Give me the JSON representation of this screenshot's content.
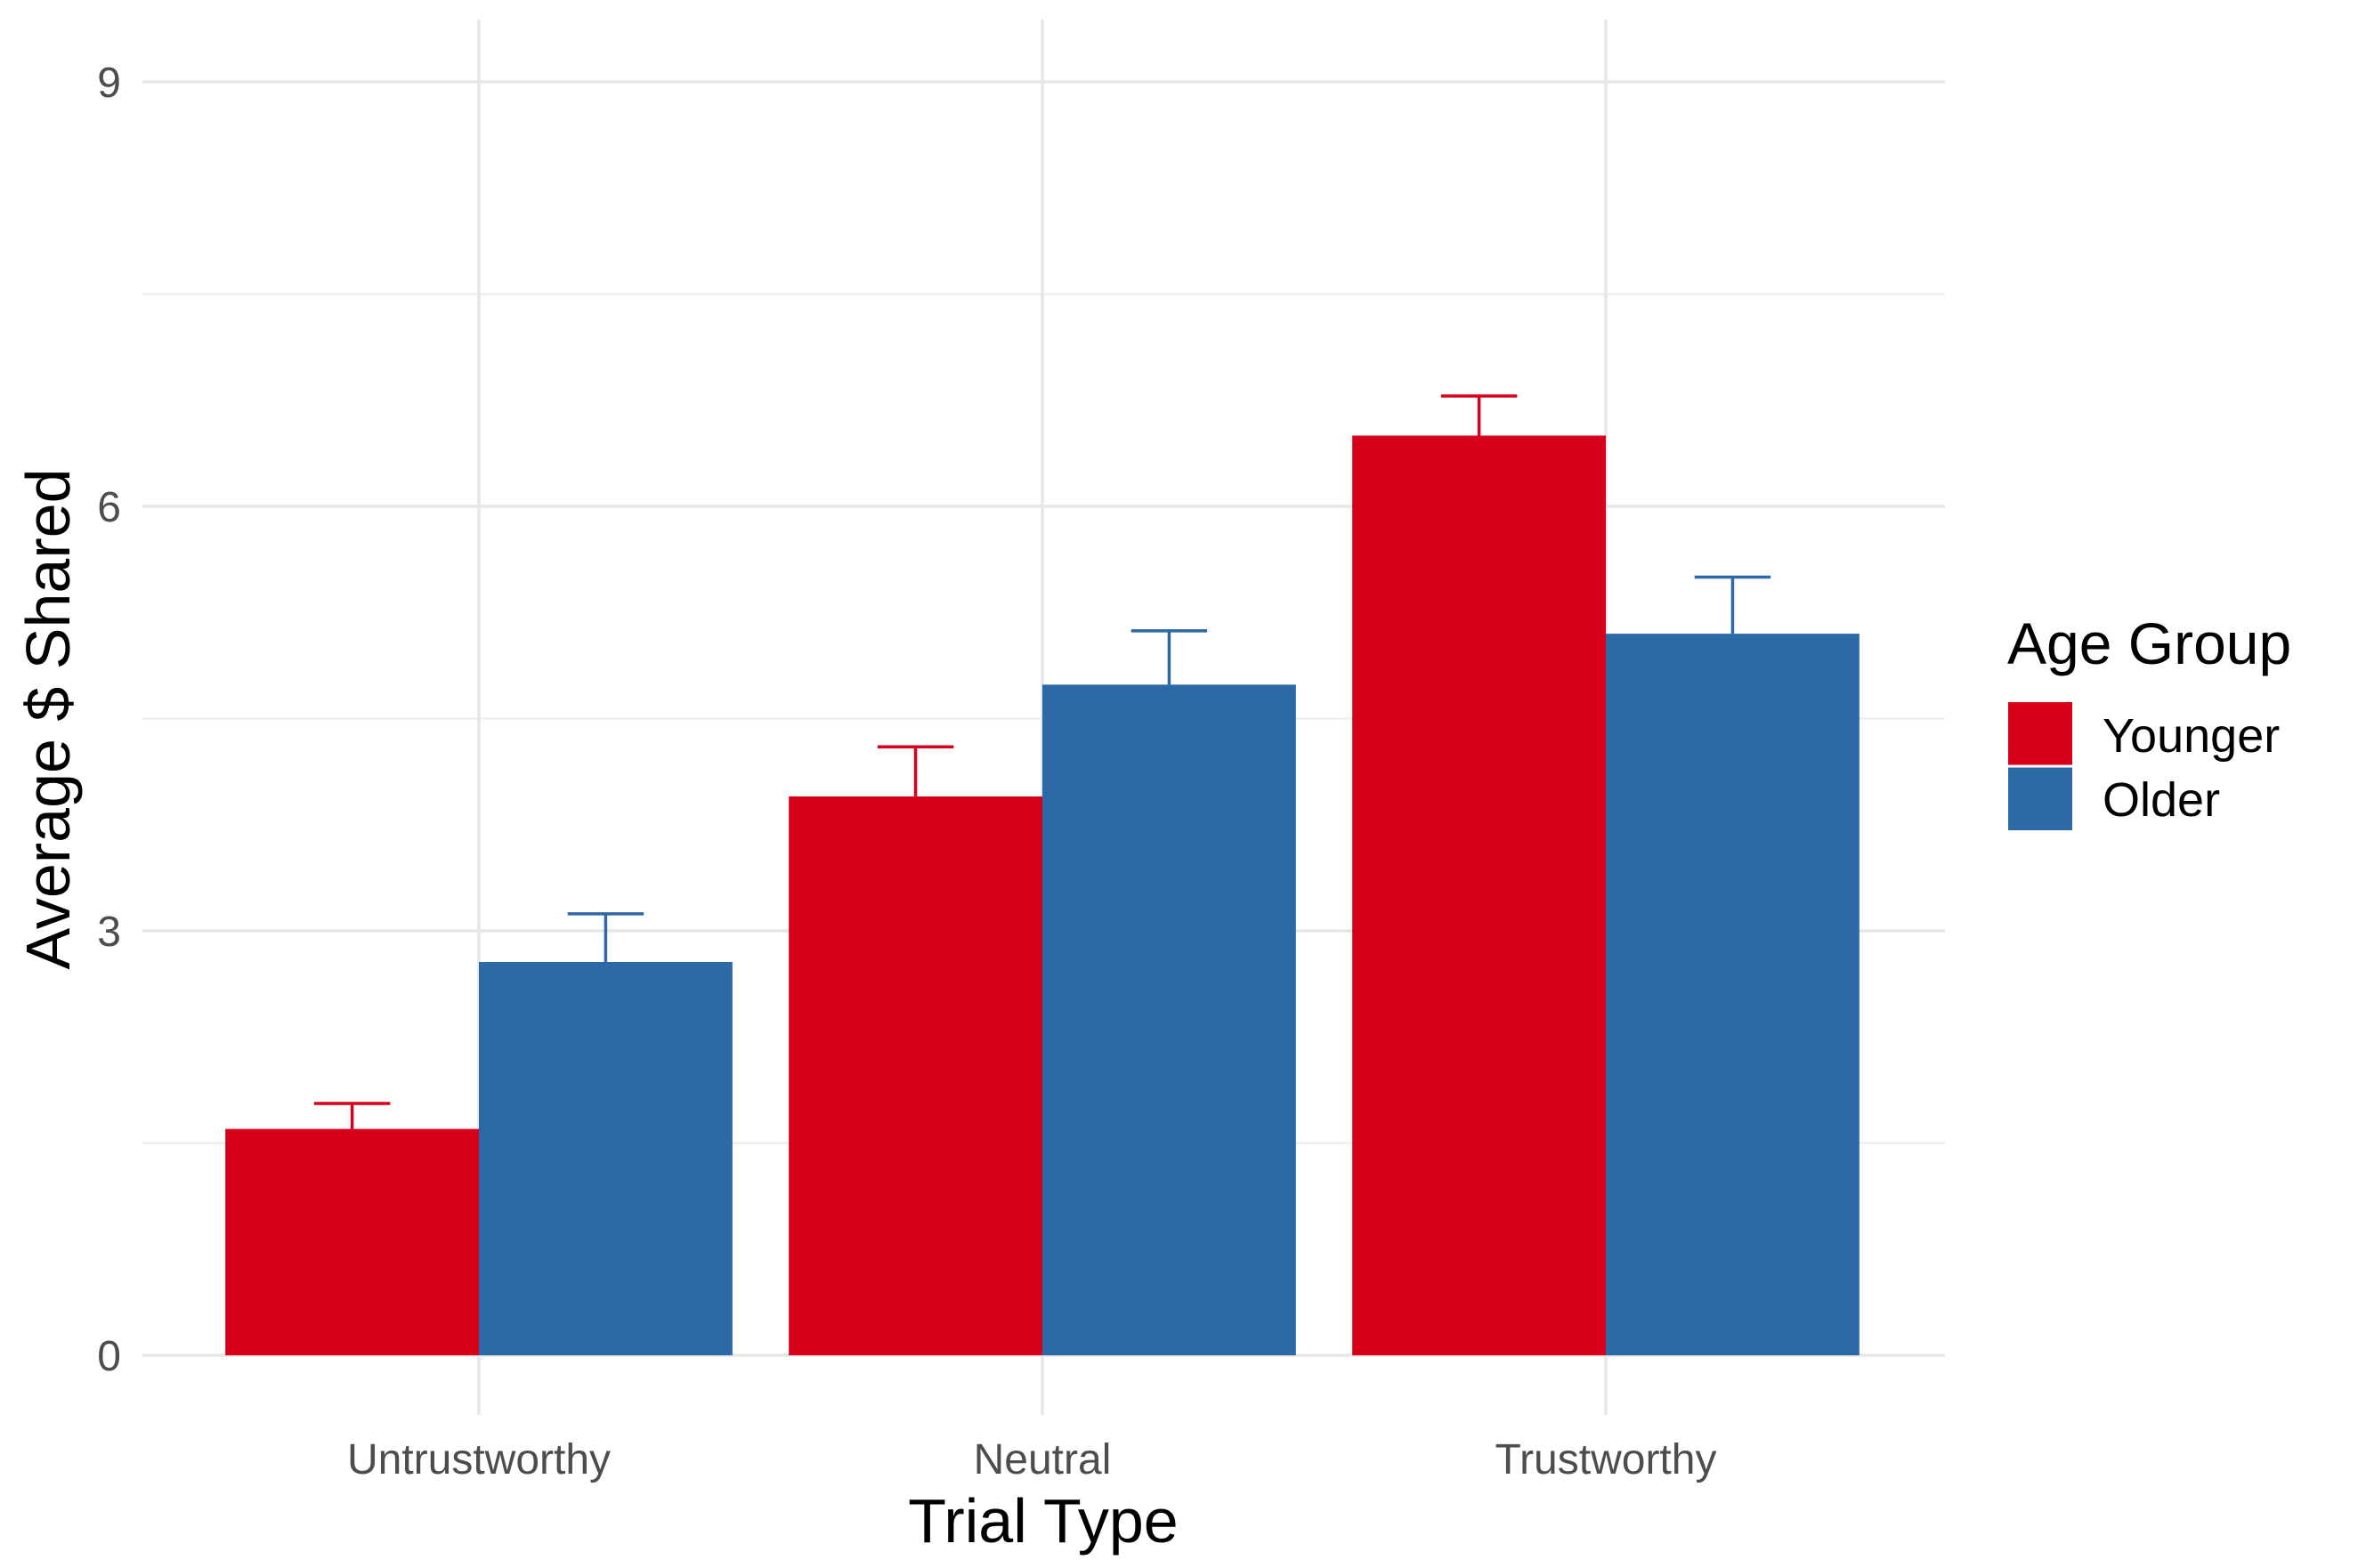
{
  "chart_data": {
    "type": "bar",
    "title": "",
    "xlabel": "Trial Type",
    "ylabel": "Average $ Shared",
    "categories": [
      "Untrustworthy",
      "Neutral",
      "Trustworthy"
    ],
    "series": [
      {
        "name": "Younger",
        "color": "#d7001a",
        "values": [
          1.6,
          3.95,
          6.5
        ],
        "error_upper": [
          1.78,
          4.3,
          6.78
        ]
      },
      {
        "name": "Older",
        "color": "#2d69a6",
        "values": [
          2.78,
          4.74,
          5.1
        ],
        "error_upper": [
          3.12,
          5.12,
          5.5
        ]
      }
    ],
    "ylim": [
      -0.4,
      9.45
    ],
    "yticks": [
      "0",
      "3",
      "6",
      "9"
    ],
    "ytick_values": [
      0,
      3,
      6,
      9
    ],
    "grid": true,
    "legend": {
      "title": "Age Group",
      "position": "right"
    }
  }
}
